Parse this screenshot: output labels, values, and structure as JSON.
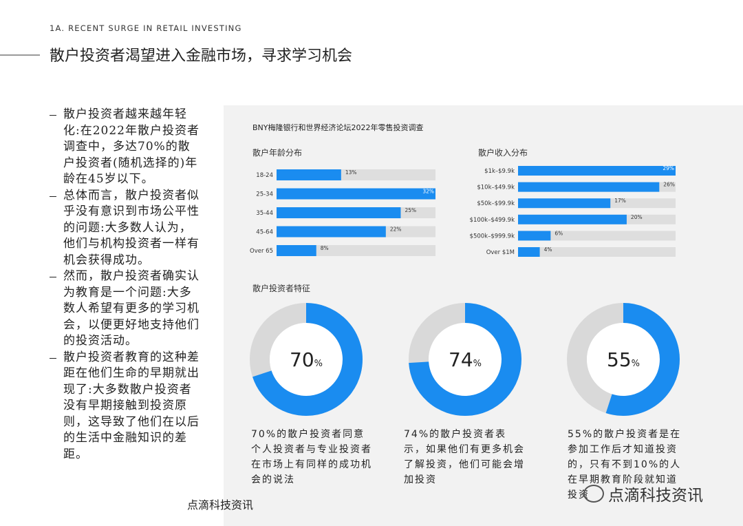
{
  "header": {
    "section": "1A. RECENT SURGE IN RETAIL INVESTING",
    "title": "散户投资者渴望进入金融市场，寻求学习机会"
  },
  "bullets": [
    "散户投资者越来越年轻化:在2022年散户投资者调查中，多达70%的散户投资者(随机选择的)年龄在45岁以下。",
    "总体而言，散户投资者似乎没有意识到市场公平性的问题:大多数人认为，他们与机构投资者一样有机会获得成功。",
    "然而，散户投资者确实认为教育是一个问题:大多数人希望有更多的学习机会，以便更好地支持他们的投资活动。",
    "散户投资者教育的这种差距在他们生命的早期就出现了:大多数散户投资者没有早期接触到投资原则，这导致了他们在以后的生活中金融知识的差距。"
  ],
  "panel_title": "BNY梅隆银行和世界经济论坛2022年零售投资调查",
  "section_title": "散户投资者特征",
  "footer": "点滴科技资讯",
  "watermark": "点滴科技资讯",
  "chart_data": [
    {
      "type": "hbar",
      "title": "散户年龄分布",
      "categories": [
        "18-24",
        "25-34",
        "35-44",
        "45-64",
        "Over 65"
      ],
      "values": [
        13,
        32,
        25,
        22,
        8
      ],
      "value_labels": [
        "13%",
        "32%",
        "25%",
        "22%",
        "8%"
      ],
      "color": "#1a8cf0",
      "track_color": "#dedede",
      "xlim": [
        0,
        32
      ]
    },
    {
      "type": "hbar",
      "title": "散户收入分布",
      "categories": [
        "$1k–$9.9k",
        "$10k–$49.9k",
        "$50k–$99.9k",
        "$100k–$499.9k",
        "$500k–$999.9k",
        "Over $1M"
      ],
      "values": [
        29,
        26,
        17,
        20,
        6,
        4
      ],
      "value_labels": [
        "29%",
        "26%",
        "17%",
        "20%",
        "6%",
        "4%"
      ],
      "color": "#1a8cf0",
      "track_color": "#dedede",
      "xlim": [
        0,
        29
      ]
    },
    {
      "type": "donut",
      "values": [
        70
      ],
      "unit": "%",
      "ylim": [
        0,
        100
      ],
      "color": "#1a8cf0",
      "track_color": "#d9d9d9",
      "caption": "70%的散户投资者同意个人投资者与专业投资者在市场上有同样的成功机会的说法"
    },
    {
      "type": "donut",
      "values": [
        74
      ],
      "unit": "%",
      "ylim": [
        0,
        100
      ],
      "color": "#1a8cf0",
      "track_color": "#d9d9d9",
      "caption": "74%的散户投资者表示，如果他们有更多机会了解投资，他们可能会增加投资"
    },
    {
      "type": "donut",
      "values": [
        55
      ],
      "unit": "%",
      "ylim": [
        0,
        100
      ],
      "color": "#1a8cf0",
      "track_color": "#d9d9d9",
      "caption": "55%的散户投资者是在参加工作后才知道投资的，只有不到10%的人在早期教育阶段就知道投资"
    }
  ]
}
